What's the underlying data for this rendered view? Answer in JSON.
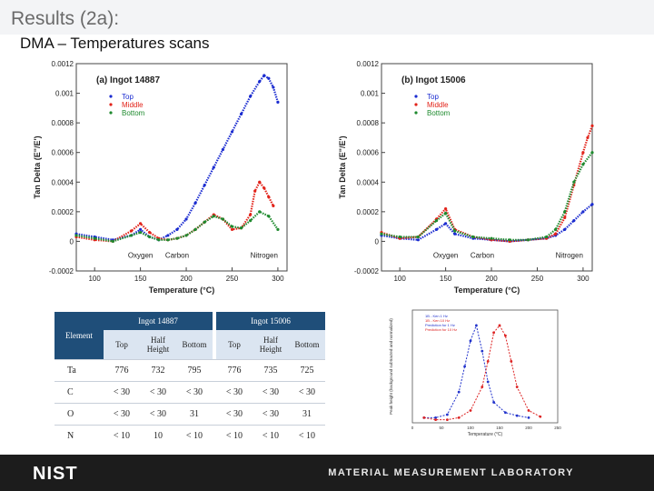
{
  "header": {
    "title": "Results (2a):",
    "subtitle": "DMA – Temperatures scans"
  },
  "chart_data": [
    {
      "type": "scatter",
      "title": "(a) Ingot 14887",
      "xlabel": "Temperature (°C)",
      "ylabel": "Tan Delta (E\"/E')",
      "xlim": [
        80,
        310
      ],
      "ylim": [
        -0.0002,
        0.0012
      ],
      "xticks": [
        "100",
        "150",
        "200",
        "250",
        "300"
      ],
      "yticks": [
        "-0.0002",
        "0",
        "0.0002",
        "0.0004",
        "0.0006",
        "0.0008",
        "0.001",
        "0.0012"
      ],
      "annotations": [
        "Oxygen",
        "Carbon",
        "Nitrogen"
      ],
      "legend_position": "top-left",
      "series": [
        {
          "name": "Top",
          "color": "#1a2bd0",
          "x": [
            80,
            100,
            120,
            140,
            150,
            160,
            170,
            180,
            190,
            200,
            210,
            220,
            230,
            240,
            250,
            260,
            270,
            280,
            285,
            290,
            295,
            300
          ],
          "y": [
            5e-05,
            3e-05,
            1e-05,
            4e-05,
            8e-05,
            3e-05,
            1e-05,
            4e-05,
            8e-05,
            0.00015,
            0.00026,
            0.00038,
            0.0005,
            0.00062,
            0.00074,
            0.00086,
            0.00098,
            0.00108,
            0.00112,
            0.0011,
            0.00104,
            0.00094
          ]
        },
        {
          "name": "Middle",
          "color": "#e2231a",
          "x": [
            80,
            100,
            120,
            140,
            150,
            160,
            170,
            180,
            190,
            200,
            210,
            220,
            230,
            240,
            250,
            260,
            270,
            275,
            280,
            285,
            290,
            295
          ],
          "y": [
            3e-05,
            1e-05,
            0.0,
            7e-05,
            0.00012,
            6e-05,
            2e-05,
            1e-05,
            2e-05,
            4e-05,
            8e-05,
            0.00013,
            0.00018,
            0.00015,
            8e-05,
            9e-05,
            0.00018,
            0.00034,
            0.0004,
            0.00036,
            0.0003,
            0.00024
          ]
        },
        {
          "name": "Bottom",
          "color": "#1e8a2e",
          "x": [
            80,
            100,
            120,
            140,
            150,
            160,
            170,
            180,
            190,
            200,
            210,
            220,
            230,
            240,
            250,
            260,
            270,
            280,
            290,
            300
          ],
          "y": [
            4e-05,
            2e-05,
            0.0,
            4e-05,
            6e-05,
            3e-05,
            1e-05,
            1e-05,
            2e-05,
            4e-05,
            8e-05,
            0.00013,
            0.00017,
            0.00015,
            0.0001,
            9e-05,
            0.00014,
            0.0002,
            0.00017,
            8e-05
          ]
        }
      ]
    },
    {
      "type": "scatter",
      "title": "(b) Ingot 15006",
      "xlabel": "Temperature (°C)",
      "ylabel": "Tan Delta (E\"/E')",
      "xlim": [
        80,
        310
      ],
      "ylim": [
        -0.0002,
        0.0012
      ],
      "xticks": [
        "100",
        "150",
        "200",
        "250",
        "300"
      ],
      "yticks": [
        "-0.0002",
        "0",
        "0.0002",
        "0.0004",
        "0.0006",
        "0.0008",
        "0.001",
        "0.0012"
      ],
      "annotations": [
        "Oxygen",
        "Carbon",
        "Nitrogen"
      ],
      "legend_position": "top-left",
      "series": [
        {
          "name": "Top",
          "color": "#1a2bd0",
          "x": [
            80,
            100,
            120,
            140,
            150,
            160,
            180,
            200,
            220,
            240,
            260,
            270,
            280,
            290,
            300,
            310
          ],
          "y": [
            4e-05,
            2e-05,
            1e-05,
            8e-05,
            0.00012,
            5e-05,
            2e-05,
            1e-05,
            0.0,
            1e-05,
            2e-05,
            4e-05,
            8e-05,
            0.00014,
            0.0002,
            0.00025
          ]
        },
        {
          "name": "Middle",
          "color": "#e2231a",
          "x": [
            80,
            100,
            120,
            140,
            150,
            160,
            180,
            200,
            220,
            240,
            260,
            270,
            280,
            290,
            300,
            305,
            310
          ],
          "y": [
            6e-05,
            2e-05,
            3e-05,
            0.00015,
            0.00022,
            8e-05,
            3e-05,
            1e-05,
            0.0,
            1e-05,
            2e-05,
            5e-05,
            0.00016,
            0.00038,
            0.0006,
            0.0007,
            0.00078
          ]
        },
        {
          "name": "Bottom",
          "color": "#1e8a2e",
          "x": [
            80,
            100,
            120,
            140,
            150,
            160,
            180,
            200,
            220,
            240,
            260,
            270,
            280,
            290,
            300,
            310
          ],
          "y": [
            5e-05,
            3e-05,
            3e-05,
            0.00014,
            0.00019,
            7e-05,
            3e-05,
            2e-05,
            1e-05,
            1e-05,
            3e-05,
            8e-05,
            0.0002,
            0.0004,
            0.00052,
            0.0006
          ]
        }
      ]
    },
    {
      "type": "scatter",
      "title": "",
      "xlabel": "Temperature (°C)",
      "ylabel": "Peak height (background subtracted and normalized)",
      "xlim": [
        0,
        250
      ],
      "ylim": [
        0,
        1.1
      ],
      "xticks": [
        "0",
        "50",
        "100",
        "150",
        "200",
        "250"
      ],
      "legend_position": "top-left",
      "legend": [
        "1B - Ken 1 Hz",
        "1B - Ken 10 Hz",
        "Prediction for 1 Hz",
        "Prediction for 10 Hz"
      ],
      "series": [
        {
          "name": "1B - Ken 1 Hz",
          "color": "#2233cc",
          "x": [
            20,
            40,
            60,
            80,
            90,
            100,
            110,
            120,
            130,
            140,
            160,
            180,
            200
          ],
          "y": [
            0.05,
            0.05,
            0.08,
            0.3,
            0.55,
            0.8,
            0.95,
            0.7,
            0.4,
            0.2,
            0.1,
            0.07,
            0.05
          ]
        },
        {
          "name": "1B - Ken 10 Hz",
          "color": "#dd2222",
          "x": [
            20,
            40,
            60,
            80,
            100,
            120,
            130,
            140,
            150,
            160,
            170,
            180,
            200,
            220
          ],
          "y": [
            0.05,
            0.03,
            0.03,
            0.05,
            0.12,
            0.35,
            0.6,
            0.88,
            0.95,
            0.85,
            0.6,
            0.35,
            0.12,
            0.06
          ]
        }
      ]
    }
  ],
  "table": {
    "group1": "Ingot 14887",
    "group2": "Ingot 15006",
    "element_header": "Element",
    "columns": [
      "Top",
      "Half Height",
      "Bottom",
      "Top",
      "Half Height",
      "Bottom"
    ],
    "rows": [
      {
        "element": "Ta",
        "values": [
          "776",
          "732",
          "795",
          "776",
          "735",
          "725"
        ]
      },
      {
        "element": "C",
        "values": [
          "< 30",
          "< 30",
          "< 30",
          "< 30",
          "< 30",
          "< 30"
        ]
      },
      {
        "element": "O",
        "values": [
          "< 30",
          "< 30",
          "31",
          "< 30",
          "< 30",
          "31"
        ]
      },
      {
        "element": "N",
        "values": [
          "< 10",
          "10",
          "< 10",
          "< 10",
          "< 10",
          "< 10"
        ]
      }
    ]
  },
  "footer": {
    "logo": "NIST",
    "lab": "MATERIAL MEASUREMENT LABORATORY"
  }
}
